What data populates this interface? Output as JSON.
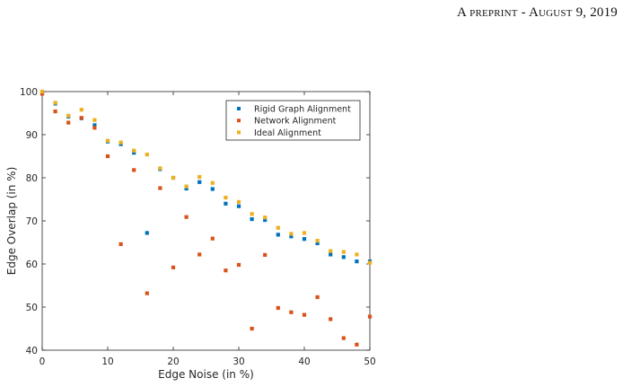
{
  "header": {
    "text": "A preprint - August 9, 2019"
  },
  "chart_data": {
    "type": "scatter",
    "xlabel": "Edge Noise (in %)",
    "ylabel": "Edge Overlap (in %)",
    "xlim": [
      0,
      50
    ],
    "ylim": [
      40,
      100
    ],
    "xticks": [
      0,
      10,
      20,
      30,
      40,
      50
    ],
    "yticks": [
      40,
      50,
      60,
      70,
      80,
      90,
      100
    ],
    "grid": false,
    "legend_position": "top-right",
    "series": [
      {
        "name": "Rigid Graph Alignment",
        "color": "#0072BD",
        "points": [
          [
            0,
            99.5
          ],
          [
            2,
            97.2
          ],
          [
            4,
            94.2
          ],
          [
            6,
            93.8
          ],
          [
            8,
            92.2
          ],
          [
            10,
            88.4
          ],
          [
            12,
            87.8
          ],
          [
            14,
            85.8
          ],
          [
            16,
            67.2
          ],
          [
            18,
            82.0
          ],
          [
            20,
            80.0
          ],
          [
            22,
            77.5
          ],
          [
            24,
            79.0
          ],
          [
            26,
            77.4
          ],
          [
            28,
            74.0
          ],
          [
            30,
            73.4
          ],
          [
            32,
            70.4
          ],
          [
            34,
            70.2
          ],
          [
            36,
            66.8
          ],
          [
            38,
            66.4
          ],
          [
            40,
            65.8
          ],
          [
            42,
            64.8
          ],
          [
            44,
            62.2
          ],
          [
            46,
            61.6
          ],
          [
            48,
            60.6
          ],
          [
            50,
            60.6
          ]
        ]
      },
      {
        "name": "Network Alignment",
        "color": "#D95319",
        "points": [
          [
            0,
            99.5
          ],
          [
            2,
            95.4
          ],
          [
            4,
            92.8
          ],
          [
            6,
            93.9
          ],
          [
            8,
            91.6
          ],
          [
            10,
            85.0
          ],
          [
            12,
            64.6
          ],
          [
            14,
            81.8
          ],
          [
            16,
            53.2
          ],
          [
            18,
            77.6
          ],
          [
            20,
            59.2
          ],
          [
            22,
            70.9
          ],
          [
            24,
            62.2
          ],
          [
            26,
            65.9
          ],
          [
            28,
            58.5
          ],
          [
            30,
            59.8
          ],
          [
            32,
            45.0
          ],
          [
            34,
            62.1
          ],
          [
            36,
            49.8
          ],
          [
            38,
            48.8
          ],
          [
            40,
            48.2
          ],
          [
            42,
            52.3
          ],
          [
            44,
            47.2
          ],
          [
            46,
            42.8
          ],
          [
            48,
            41.3
          ],
          [
            50,
            47.8
          ]
        ]
      },
      {
        "name": "Ideal Alignment",
        "color": "#EDB120",
        "points": [
          [
            0,
            100.0
          ],
          [
            2,
            97.4
          ],
          [
            4,
            94.4
          ],
          [
            6,
            95.8
          ],
          [
            8,
            93.4
          ],
          [
            10,
            88.6
          ],
          [
            12,
            88.2
          ],
          [
            14,
            86.3
          ],
          [
            16,
            85.4
          ],
          [
            18,
            82.2
          ],
          [
            20,
            80.0
          ],
          [
            22,
            78.0
          ],
          [
            24,
            80.2
          ],
          [
            26,
            78.8
          ],
          [
            28,
            75.4
          ],
          [
            30,
            74.4
          ],
          [
            32,
            71.6
          ],
          [
            34,
            70.8
          ],
          [
            36,
            68.4
          ],
          [
            38,
            67.0
          ],
          [
            40,
            67.2
          ],
          [
            42,
            65.4
          ],
          [
            44,
            63.0
          ],
          [
            46,
            62.8
          ],
          [
            48,
            62.2
          ],
          [
            50,
            60.3
          ]
        ]
      }
    ]
  }
}
